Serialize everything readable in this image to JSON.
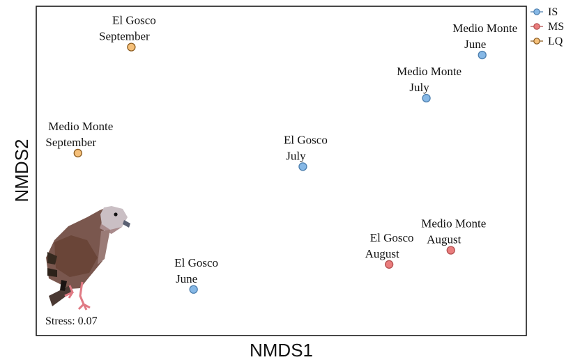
{
  "chart_data": {
    "type": "scatter",
    "xlabel": "NMDS1",
    "ylabel": "NMDS2",
    "annotation": "Stress: 0.07",
    "grid": false,
    "legend_position": "top-right outside",
    "legend": [
      {
        "name": "IS",
        "color": "#86b8e6",
        "stroke": "#4d7fae"
      },
      {
        "name": "MS",
        "color": "#ea7d7d",
        "stroke": "#b24f4f"
      },
      {
        "name": "LQ",
        "color": "#f5c07a",
        "stroke": "#8a5a1e"
      }
    ],
    "xlim": [
      0,
      100
    ],
    "ylim": [
      0,
      100
    ],
    "points": [
      {
        "group": "LQ",
        "line1": "El Gosco",
        "line2": "September",
        "x": 19.4,
        "y": 87.6
      },
      {
        "group": "LQ",
        "line1": "Medio Monte",
        "line2": "September",
        "x": 8.5,
        "y": 55.4
      },
      {
        "group": "IS",
        "line1": "Medio Monte",
        "line2": "June",
        "x": 91.0,
        "y": 85.2
      },
      {
        "group": "IS",
        "line1": "Medio Monte",
        "line2": "July",
        "x": 79.6,
        "y": 72.1
      },
      {
        "group": "IS",
        "line1": "El Gosco",
        "line2": "July",
        "x": 54.4,
        "y": 51.3
      },
      {
        "group": "IS",
        "line1": "El Gosco",
        "line2": "June",
        "x": 32.1,
        "y": 14.0
      },
      {
        "group": "MS",
        "line1": "El Gosco",
        "line2": "August",
        "x": 72.0,
        "y": 21.6
      },
      {
        "group": "MS",
        "line1": "Medio Monte",
        "line2": "August",
        "x": 84.6,
        "y": 25.9
      }
    ]
  }
}
